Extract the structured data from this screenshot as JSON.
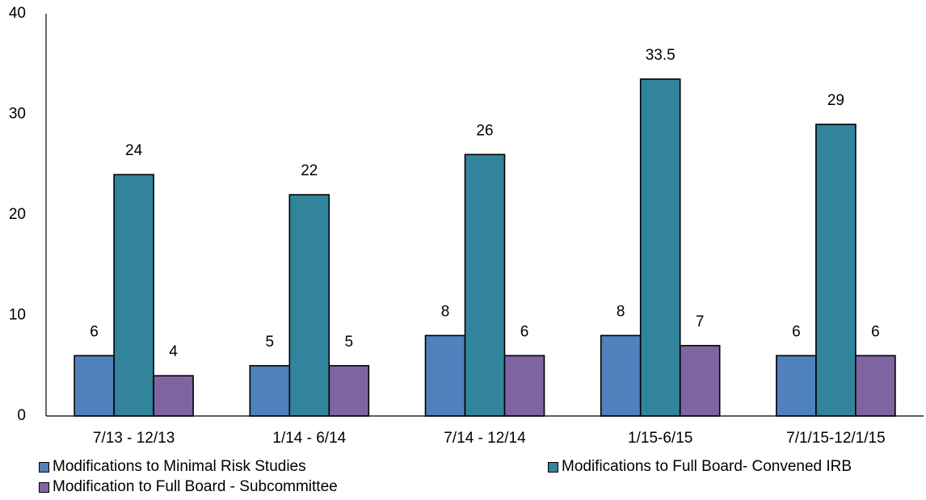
{
  "chart_data": {
    "type": "bar",
    "title": "",
    "xlabel": "",
    "ylabel": "",
    "ylim": [
      0,
      40
    ],
    "yticks": [
      0,
      10,
      20,
      30,
      40
    ],
    "grid": false,
    "legend_position": "bottom",
    "categories": [
      "7/13 - 12/13",
      "1/14 - 6/14",
      "7/14 - 12/14",
      "1/15-6/15",
      "7/1/15-12/1/15"
    ],
    "series": [
      {
        "name": "Modifications to Minimal Risk Studies",
        "color": "#4f81bd",
        "values": [
          6,
          5,
          8,
          8,
          6
        ],
        "labels": [
          "6",
          "5",
          "8",
          "8",
          "6"
        ]
      },
      {
        "name": "Modifications to Full Board- Convened IRB",
        "color": "#31849b",
        "values": [
          24,
          22,
          26,
          33.5,
          29
        ],
        "labels": [
          "24",
          "22",
          "26",
          "33.5",
          "29"
        ]
      },
      {
        "name": "Modification to Full Board - Subcommittee",
        "color": "#8064a2",
        "values": [
          4,
          5,
          6,
          7,
          6
        ],
        "labels": [
          "4",
          "5",
          "6",
          "7",
          "6"
        ]
      }
    ]
  }
}
